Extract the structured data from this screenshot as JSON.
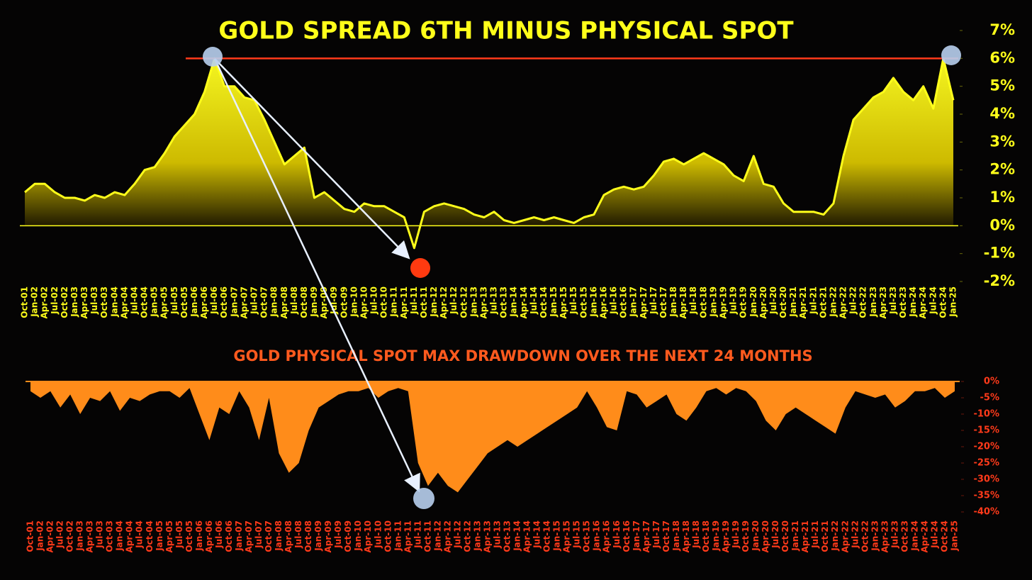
{
  "chart_data": [
    {
      "type": "area",
      "title": "GOLD SPREAD 6TH MINUS PHYSICAL SPOT",
      "color": "#ffff1a",
      "reference_line": 6,
      "categories": [
        "Oct-01",
        "Jan-02",
        "Apr-02",
        "Jul-02",
        "Oct-02",
        "Jan-03",
        "Apr-03",
        "Jul-03",
        "Oct-03",
        "Jan-04",
        "Apr-04",
        "Jul-04",
        "Oct-04",
        "Jan-05",
        "Apr-05",
        "Jul-05",
        "Oct-05",
        "Jan-06",
        "Apr-06",
        "Jul-06",
        "Oct-06",
        "Jan-07",
        "Apr-07",
        "Jul-07",
        "Oct-07",
        "Jan-08",
        "Apr-08",
        "Jul-08",
        "Oct-08",
        "Jan-09",
        "Apr-09",
        "Jul-09",
        "Oct-09",
        "Jan-10",
        "Apr-10",
        "Jul-10",
        "Oct-10",
        "Jan-11",
        "Apr-11",
        "Jul-11",
        "Oct-11",
        "Jan-12",
        "Apr-12",
        "Jul-12",
        "Oct-12",
        "Jan-13",
        "Apr-13",
        "Jul-13",
        "Oct-13",
        "Jan-14",
        "Apr-14",
        "Jul-14",
        "Oct-14",
        "Jan-15",
        "Apr-15",
        "Jul-15",
        "Oct-15",
        "Jan-16",
        "Apr-16",
        "Jul-16",
        "Oct-16",
        "Jan-17",
        "Apr-17",
        "Jul-17",
        "Oct-17",
        "Jan-18",
        "Apr-18",
        "Jul-18",
        "Oct-18",
        "Jan-19",
        "Apr-19",
        "Jul-19",
        "Oct-19",
        "Jan-20",
        "Apr-20",
        "Jul-20",
        "Oct-20",
        "Jan-21",
        "Apr-21",
        "Jul-21",
        "Oct-21",
        "Jan-22",
        "Apr-22",
        "Jul-22",
        "Oct-22",
        "Jan-23",
        "Apr-23",
        "Jul-23",
        "Oct-23",
        "Jan-24",
        "Apr-24",
        "Jul-24",
        "Oct-24",
        "Jan-25"
      ],
      "values": [
        1.2,
        1.5,
        1.5,
        1.2,
        1.0,
        1.0,
        0.9,
        1.1,
        1.0,
        1.2,
        1.1,
        1.5,
        2.0,
        2.1,
        2.6,
        3.2,
        3.6,
        4.0,
        4.8,
        6.0,
        5.0,
        5.0,
        4.6,
        4.5,
        3.8,
        3.0,
        2.2,
        2.5,
        2.8,
        1.0,
        1.2,
        0.9,
        0.6,
        0.5,
        0.8,
        0.7,
        0.7,
        0.5,
        0.3,
        -0.8,
        0.5,
        0.7,
        0.8,
        0.7,
        0.6,
        0.4,
        0.3,
        0.5,
        0.2,
        0.1,
        0.2,
        0.3,
        0.2,
        0.3,
        0.2,
        0.1,
        0.3,
        0.4,
        1.1,
        1.3,
        1.4,
        1.3,
        1.4,
        1.8,
        2.3,
        2.4,
        2.2,
        2.4,
        2.6,
        2.4,
        2.2,
        1.8,
        1.6,
        2.5,
        1.5,
        1.4,
        0.8,
        0.5,
        0.5,
        0.5,
        0.4,
        0.8,
        2.5,
        3.8,
        4.2,
        4.6,
        4.8,
        5.3,
        4.8,
        4.5,
        5.0,
        4.2,
        6.0,
        4.5
      ],
      "ylim": [
        -2,
        7
      ],
      "yticks": [
        {
          "value": 7,
          "label": "7%"
        },
        {
          "value": 6,
          "label": "6%"
        },
        {
          "value": 5,
          "label": "5%"
        },
        {
          "value": 4,
          "label": "4%"
        },
        {
          "value": 3,
          "label": "3%"
        },
        {
          "value": 2,
          "label": "2%"
        },
        {
          "value": 1,
          "label": "1%"
        },
        {
          "value": 0,
          "label": "0%"
        },
        {
          "value": -1,
          "label": "-1%"
        },
        {
          "value": -2,
          "label": "-2%"
        }
      ]
    },
    {
      "type": "drawdown",
      "title": "GOLD PHYSICAL SPOT MAX DRAWDOWN OVER THE NEXT 24 MONTHS",
      "color": "#ff8c1a",
      "categories": [
        "Oct-01",
        "Jan-02",
        "Apr-02",
        "Jul-02",
        "Oct-02",
        "Jan-03",
        "Apr-03",
        "Jul-03",
        "Oct-03",
        "Jan-04",
        "Apr-04",
        "Jul-04",
        "Oct-04",
        "Jan-05",
        "Apr-05",
        "Jul-05",
        "Oct-05",
        "Jan-06",
        "Apr-06",
        "Jul-06",
        "Oct-06",
        "Jan-07",
        "Apr-07",
        "Jul-07",
        "Oct-07",
        "Jan-08",
        "Apr-08",
        "Jul-08",
        "Oct-08",
        "Jan-09",
        "Apr-09",
        "Jul-09",
        "Oct-09",
        "Jan-10",
        "Apr-10",
        "Jul-10",
        "Oct-10",
        "Jan-11",
        "Apr-11",
        "Jul-11",
        "Oct-11",
        "Jan-12",
        "Apr-12",
        "Jul-12",
        "Oct-12",
        "Jan-13",
        "Apr-13",
        "Jul-13",
        "Oct-13",
        "Jan-14",
        "Apr-14",
        "Jul-14",
        "Oct-14",
        "Jan-15",
        "Apr-15",
        "Jul-15",
        "Oct-15",
        "Jan-16",
        "Apr-16",
        "Jul-16",
        "Oct-16",
        "Jan-17",
        "Apr-17",
        "Jul-17",
        "Oct-17",
        "Jan-18",
        "Apr-18",
        "Jul-18",
        "Oct-18",
        "Jan-19",
        "Apr-19",
        "Jul-19",
        "Oct-19",
        "Jan-20",
        "Apr-20",
        "Jul-20",
        "Oct-20",
        "Jan-21",
        "Apr-21",
        "Jul-21",
        "Oct-21",
        "Jan-22",
        "Apr-22",
        "Jul-22",
        "Oct-22",
        "Jan-23",
        "Apr-23",
        "Jul-23",
        "Oct-23",
        "Jan-24",
        "Apr-24",
        "Jul-24",
        "Oct-24",
        "Jan-25"
      ],
      "values": [
        -3,
        -5,
        -3,
        -8,
        -4,
        -10,
        -5,
        -6,
        -3,
        -9,
        -5,
        -6,
        -4,
        -3,
        -3,
        -5,
        -2,
        -10,
        -18,
        -8,
        -10,
        -3,
        -8,
        -18,
        -5,
        -22,
        -28,
        -25,
        -15,
        -8,
        -6,
        -4,
        -3,
        -3,
        -2,
        -5,
        -3,
        -2,
        -3,
        -25,
        -32,
        -28,
        -32,
        -34,
        -30,
        -26,
        -22,
        -20,
        -18,
        -20,
        -18,
        -16,
        -14,
        -12,
        -10,
        -8,
        -3,
        -8,
        -14,
        -15,
        -3,
        -4,
        -8,
        -6,
        -4,
        -10,
        -12,
        -8,
        -3,
        -2,
        -4,
        -2,
        -3,
        -6,
        -12,
        -15,
        -10,
        -8,
        -10,
        -12,
        -14,
        -16,
        -8,
        -3,
        -4,
        -5,
        -4,
        -8,
        -6,
        -3,
        -3,
        -2,
        -5,
        -3
      ],
      "ylim": [
        -40,
        0
      ],
      "yticks": [
        {
          "value": 0,
          "label": "0%"
        },
        {
          "value": -5,
          "label": "-5%"
        },
        {
          "value": -10,
          "label": "-10%"
        },
        {
          "value": -15,
          "label": "-15%"
        },
        {
          "value": -20,
          "label": "-20%"
        },
        {
          "value": -25,
          "label": "-25%"
        },
        {
          "value": -30,
          "label": "-30%"
        },
        {
          "value": -35,
          "label": "-35%"
        },
        {
          "value": -40,
          "label": "-40%"
        }
      ]
    }
  ]
}
